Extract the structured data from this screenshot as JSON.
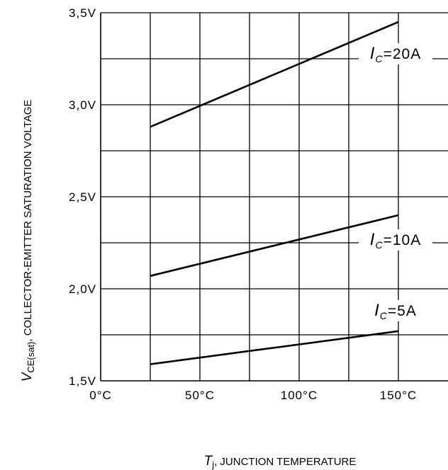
{
  "chart_data": {
    "type": "line",
    "title": "",
    "xlabel": {
      "symbol": "T",
      "subscript": "j",
      "text": ", JUNCTION TEMPERATURE"
    },
    "ylabel": {
      "symbol": "V",
      "subscript": "CE(sat)",
      "text": ",  COLLECTOR-EMITTER SATURATION VOLTAGE"
    },
    "xlim": [
      0,
      150
    ],
    "ylim": [
      1.5,
      3.5
    ],
    "x_grid_step": 25,
    "y_grid_step": 0.25,
    "grid": true,
    "x_ticks": [
      {
        "value": 0,
        "label": "0°C"
      },
      {
        "value": 50,
        "label": "50°C"
      },
      {
        "value": 100,
        "label": "100°C"
      },
      {
        "value": 150,
        "label": "150°C"
      }
    ],
    "y_ticks": [
      {
        "value": 1.5,
        "label": "1,5V"
      },
      {
        "value": 2.0,
        "label": "2,0V"
      },
      {
        "value": 2.5,
        "label": "2,5V"
      },
      {
        "value": 3.0,
        "label": "3,0V"
      },
      {
        "value": 3.5,
        "label": "3,5V"
      }
    ],
    "series": [
      {
        "label_symbol": "I",
        "label_subscript": "C",
        "label_value": "=20A",
        "x": [
          25,
          150
        ],
        "y": [
          2.88,
          3.45
        ]
      },
      {
        "label_symbol": "I",
        "label_subscript": "C",
        "label_value": "=10A",
        "x": [
          25,
          150
        ],
        "y": [
          2.07,
          2.4
        ]
      },
      {
        "label_symbol": "I",
        "label_subscript": "C",
        "label_value": "=5A",
        "x": [
          25,
          150
        ],
        "y": [
          1.59,
          1.77
        ]
      }
    ]
  }
}
